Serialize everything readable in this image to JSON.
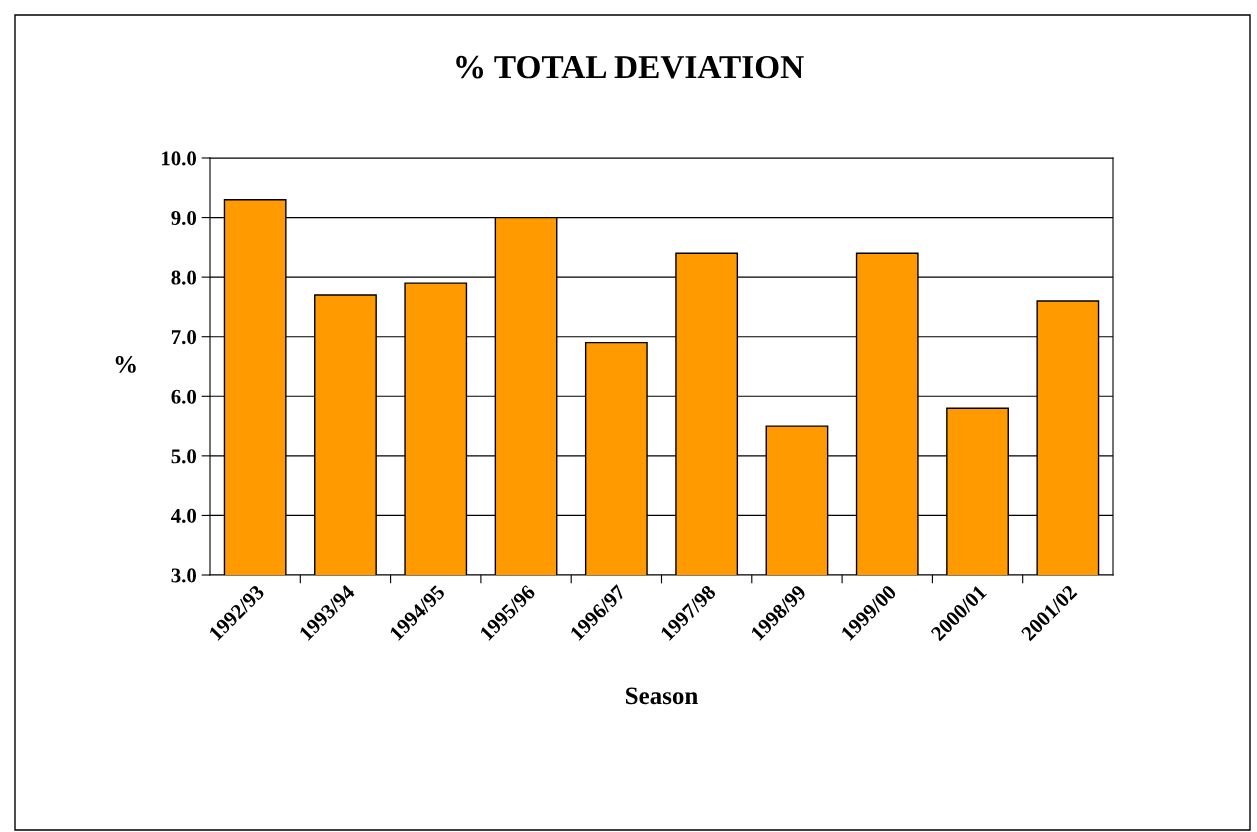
{
  "chart_data": {
    "type": "bar",
    "title": "% TOTAL DEVIATION",
    "xlabel": "Season",
    "ylabel": "%",
    "categories": [
      "1992/93",
      "1993/94",
      "1994/95",
      "1995/96",
      "1996/97",
      "1997/98",
      "1998/99",
      "1999/00",
      "2000/01",
      "2001/02"
    ],
    "values": [
      9.3,
      7.7,
      7.9,
      9.0,
      6.9,
      8.4,
      5.5,
      8.4,
      5.8,
      7.6
    ],
    "color": "#ff9a00",
    "ylim": [
      3.0,
      10.0
    ],
    "yticks": [
      {
        "value": 3,
        "label": "3.0"
      },
      {
        "value": 4,
        "label": "4.0"
      },
      {
        "value": 5,
        "label": "5.0"
      },
      {
        "value": 6,
        "label": "6.0"
      },
      {
        "value": 7,
        "label": "7.0"
      },
      {
        "value": 8,
        "label": "8.0"
      },
      {
        "value": 9,
        "label": "9.0"
      },
      {
        "value": 10,
        "label": "10.0"
      }
    ],
    "grid": "y"
  }
}
